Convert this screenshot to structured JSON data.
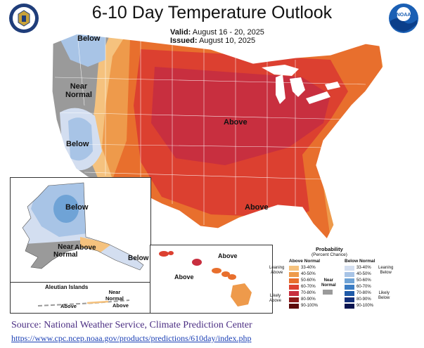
{
  "title": "6-10 Day Temperature Outlook",
  "valid": {
    "label": "Valid:",
    "value": "August 16 - 20, 2025"
  },
  "issued": {
    "label": "Issued:",
    "value": "August 10, 2025"
  },
  "logos": {
    "left": "us-dept-commerce-seal",
    "right": "noaa-logo"
  },
  "map_labels": {
    "nw_below": "Below",
    "near_normal": "Near\nNormal",
    "west_below": "Below",
    "central_above": "Above",
    "south_above": "Above",
    "ak_below": "Below",
    "ak_near_normal": "Near\nNormal",
    "ak_above": "Above",
    "ak_se_below": "Below",
    "aleutian_title": "Aleutian Islands",
    "aleutian_near_normal": "Near\nNormal",
    "aleutian_above_left": "Above",
    "aleutian_above_right": "Above",
    "hi_above_top": "Above",
    "hi_above_left": "Above"
  },
  "legend": {
    "title": "Probability",
    "subtitle": "(Percent Chance)",
    "above_header": "Above Normal",
    "below_header": "Below Normal",
    "near_header": "Near\nNormal",
    "leaning_above": "Leaning\nAbove",
    "likely_above": "Likely\nAbove",
    "leaning_below": "Leaning\nBelow",
    "likely_below": "Likely\nBelow",
    "above_bins": [
      {
        "range": "33-40%",
        "color": "#f5c27e"
      },
      {
        "range": "40-50%",
        "color": "#ee9a4b"
      },
      {
        "range": "50-60%",
        "color": "#e86f2d"
      },
      {
        "range": "60-70%",
        "color": "#dc4030"
      },
      {
        "range": "70-80%",
        "color": "#c82f3f"
      },
      {
        "range": "80-90%",
        "color": "#8e1a1a"
      },
      {
        "range": "90-100%",
        "color": "#5c0b0b"
      }
    ],
    "below_bins": [
      {
        "range": "33-40%",
        "color": "#d3def0"
      },
      {
        "range": "40-50%",
        "color": "#a8c4e6"
      },
      {
        "range": "50-60%",
        "color": "#6fa3d6"
      },
      {
        "range": "60-70%",
        "color": "#3c7dc4"
      },
      {
        "range": "70-80%",
        "color": "#1f5aa8"
      },
      {
        "range": "80-90%",
        "color": "#132f7a"
      },
      {
        "range": "90-100%",
        "color": "#0b1450"
      }
    ],
    "near_color": "#9a9a9a"
  },
  "source": "Source: National Weather Service, Climate Prediction Center",
  "source_url": "https://www.cpc.ncep.noaa.gov/products/predictions/610day/index.php"
}
